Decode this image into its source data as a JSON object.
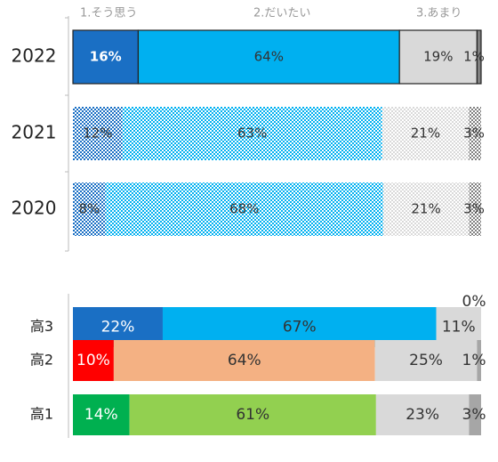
{
  "chart_data": [
    {
      "type": "stacked-bar-horizontal",
      "categories": [
        "2022",
        "2021",
        "2020"
      ],
      "patterned": [
        false,
        true,
        true
      ],
      "series": [
        {
          "name": "1.そう思う",
          "color": "#1a6fc4",
          "values": [
            16,
            12,
            8
          ],
          "value_labels": [
            "16%",
            "12%",
            "8%"
          ]
        },
        {
          "name": "2.だいたい",
          "color": "#00b0f0",
          "values": [
            64,
            63,
            68
          ],
          "value_labels": [
            "64%",
            "63%",
            "68%"
          ]
        },
        {
          "name": "3.あまり",
          "color": "#d9d9d9",
          "values": [
            19,
            21,
            21
          ],
          "value_labels": [
            "19%",
            "21%",
            "21%"
          ]
        },
        {
          "color": "#808080",
          "values": [
            1,
            3,
            3
          ],
          "value_labels": [
            "1%",
            "3%",
            "3%"
          ]
        }
      ]
    },
    {
      "type": "stacked-bar-horizontal",
      "categories": [
        "高3",
        "高2",
        "高1"
      ],
      "series": [
        {
          "colors": [
            "#1a6fc4",
            "#ff0000",
            "#00b050"
          ],
          "values": [
            22,
            10,
            14
          ],
          "value_labels": [
            "22%",
            "10%",
            "14%"
          ]
        },
        {
          "colors": [
            "#00b0f0",
            "#f4b183",
            "#92d050"
          ],
          "values": [
            67,
            64,
            61
          ],
          "value_labels": [
            "67%",
            "64%",
            "61%"
          ]
        },
        {
          "colors": [
            "#d9d9d9",
            "#d9d9d9",
            "#d9d9d9"
          ],
          "values": [
            11,
            25,
            23
          ],
          "value_labels": [
            "11%",
            "25%",
            "23%"
          ]
        },
        {
          "colors": [
            "#a6a6a6",
            "#a6a6a6",
            "#a6a6a6"
          ],
          "values": [
            0,
            1,
            3
          ],
          "value_labels": [
            "0%",
            "1%",
            "3%"
          ]
        }
      ]
    }
  ]
}
